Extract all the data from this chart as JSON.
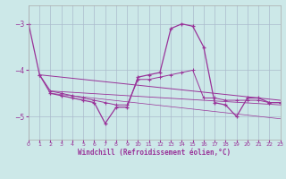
{
  "xlabel": "Windchill (Refroidissement éolien,°C)",
  "background_color": "#cce8e8",
  "line_color": "#993399",
  "grid_color": "#aabbcc",
  "xlim": [
    0,
    23
  ],
  "ylim": [
    -5.5,
    -2.6
  ],
  "yticks": [
    -5,
    -4,
    -3
  ],
  "xticks": [
    0,
    1,
    2,
    3,
    4,
    5,
    6,
    7,
    8,
    9,
    10,
    11,
    12,
    13,
    14,
    15,
    16,
    17,
    18,
    19,
    20,
    21,
    22,
    23
  ],
  "series1": [
    [
      0,
      -3.0
    ],
    [
      1,
      -4.1
    ],
    [
      2,
      -4.5
    ],
    [
      3,
      -4.55
    ],
    [
      4,
      -4.6
    ],
    [
      5,
      -4.65
    ],
    [
      6,
      -4.7
    ],
    [
      7,
      -5.15
    ],
    [
      8,
      -4.8
    ],
    [
      9,
      -4.8
    ],
    [
      10,
      -4.15
    ],
    [
      11,
      -4.1
    ],
    [
      12,
      -4.05
    ],
    [
      13,
      -3.1
    ],
    [
      14,
      -3.0
    ],
    [
      15,
      -3.05
    ],
    [
      16,
      -3.5
    ],
    [
      17,
      -4.7
    ],
    [
      18,
      -4.75
    ],
    [
      19,
      -5.0
    ],
    [
      20,
      -4.6
    ],
    [
      21,
      -4.6
    ],
    [
      22,
      -4.7
    ],
    [
      23,
      -4.7
    ]
  ],
  "series2": [
    [
      1,
      -4.1
    ],
    [
      2,
      -4.45
    ],
    [
      3,
      -4.5
    ],
    [
      4,
      -4.55
    ],
    [
      5,
      -4.6
    ],
    [
      6,
      -4.65
    ],
    [
      7,
      -4.7
    ],
    [
      8,
      -4.75
    ],
    [
      9,
      -4.75
    ],
    [
      10,
      -4.2
    ],
    [
      11,
      -4.2
    ],
    [
      12,
      -4.15
    ],
    [
      13,
      -4.1
    ],
    [
      14,
      -4.05
    ],
    [
      15,
      -4.0
    ],
    [
      16,
      -4.6
    ],
    [
      17,
      -4.6
    ],
    [
      18,
      -4.65
    ],
    [
      19,
      -4.65
    ],
    [
      20,
      -4.65
    ],
    [
      21,
      -4.65
    ],
    [
      22,
      -4.7
    ],
    [
      23,
      -4.7
    ]
  ],
  "trend1_x": [
    1,
    23
  ],
  "trend1_y": [
    -4.1,
    -4.65
  ],
  "trend2_x": [
    2,
    23
  ],
  "trend2_y": [
    -4.45,
    -4.75
  ],
  "trend3_x": [
    2,
    23
  ],
  "trend3_y": [
    -4.5,
    -5.05
  ]
}
